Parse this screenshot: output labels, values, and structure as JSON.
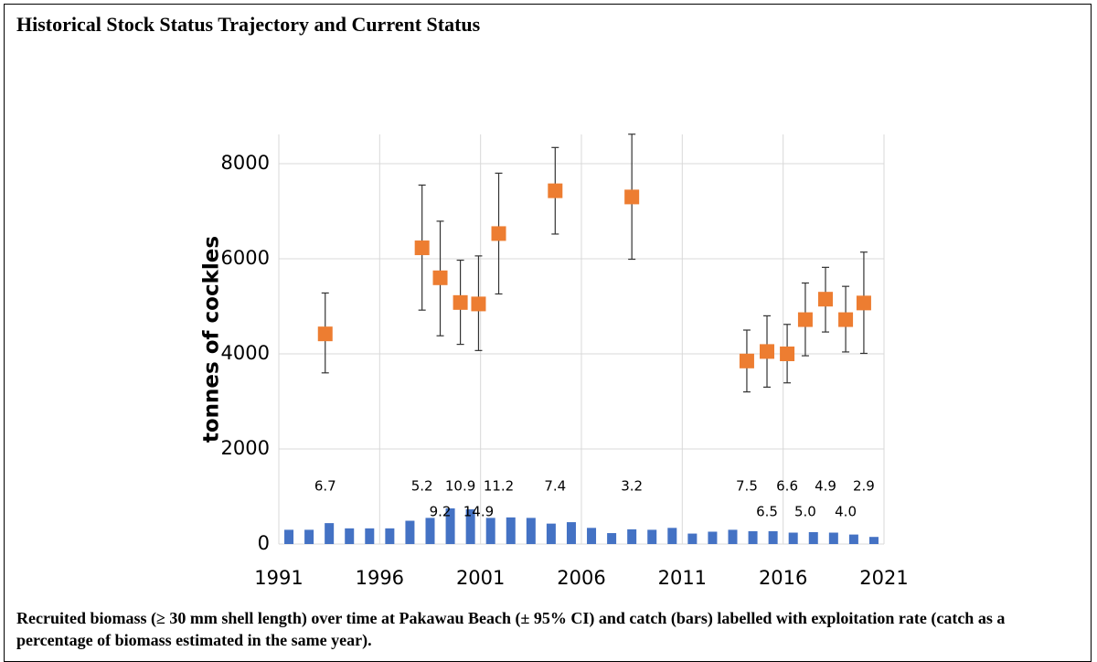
{
  "header": {
    "title": "Historical Stock Status Trajectory and Current Status"
  },
  "chart_data": {
    "type": "scatter-bar",
    "ylabel": "tonnes of cockles",
    "xlim": [
      1991,
      2021
    ],
    "xticks": [
      1991,
      1996,
      2001,
      2006,
      2011,
      2016,
      2021
    ],
    "ylim": [
      0,
      9000
    ],
    "yticks": [
      0,
      2000,
      4000,
      6000,
      8000
    ],
    "grid": true,
    "bars": {
      "color": "#4472c4",
      "x": [
        1991.5,
        1992.5,
        1993.5,
        1994.5,
        1995.5,
        1996.5,
        1997.5,
        1998.5,
        1999.5,
        2000.5,
        2001.5,
        2002.5,
        2003.5,
        2004.5,
        2005.5,
        2006.5,
        2007.5,
        2008.5,
        2009.5,
        2010.5,
        2011.5,
        2012.5,
        2013.5,
        2014.5,
        2015.5,
        2016.5,
        2017.5,
        2018.5,
        2019.5,
        2020.5
      ],
      "values": [
        300,
        300,
        440,
        330,
        330,
        330,
        490,
        550,
        750,
        730,
        550,
        560,
        550,
        430,
        460,
        340,
        230,
        310,
        300,
        340,
        220,
        260,
        300,
        270,
        270,
        240,
        250,
        240,
        200,
        150
      ]
    },
    "points": {
      "color": "#ed7d31",
      "x": [
        1993.3,
        1998.1,
        1999,
        2000,
        2000.9,
        2001.9,
        2004.7,
        2008.5,
        2014.2,
        2015.2,
        2016.2,
        2017.1,
        2018.1,
        2019.1,
        2020
      ],
      "values": [
        4420,
        6230,
        5600,
        5080,
        5050,
        6530,
        7430,
        7300,
        3850,
        4050,
        4000,
        4720,
        5150,
        4720,
        5070
      ],
      "lower": [
        3600,
        4920,
        4380,
        4200,
        4070,
        5260,
        6520,
        5990,
        3200,
        3300,
        3390,
        3960,
        4460,
        4040,
        4010
      ],
      "upper": [
        5280,
        7550,
        6790,
        5970,
        6060,
        7800,
        8340,
        8620,
        4500,
        4800,
        4620,
        5490,
        5820,
        5420,
        6140
      ],
      "rates": [
        6.7,
        5.2,
        9.2,
        10.9,
        14.9,
        11.2,
        7.4,
        3.2,
        7.5,
        6.5,
        6.6,
        5.0,
        4.9,
        4.0,
        2.9
      ],
      "rate_labels": [
        "6.7",
        "5.2",
        "9.2",
        "10.9",
        "14.9",
        "11.2",
        "7.4",
        "3.2",
        "7.5",
        "6.5",
        "6.6",
        "5.0",
        "4.9",
        "4.0",
        "2.9"
      ]
    }
  },
  "caption": "Recruited biomass (≥ 30 mm shell length) over time at Pakawau Beach (± 95% CI) and catch (bars) labelled with exploitation rate (catch as a percentage of biomass estimated in the same year)."
}
